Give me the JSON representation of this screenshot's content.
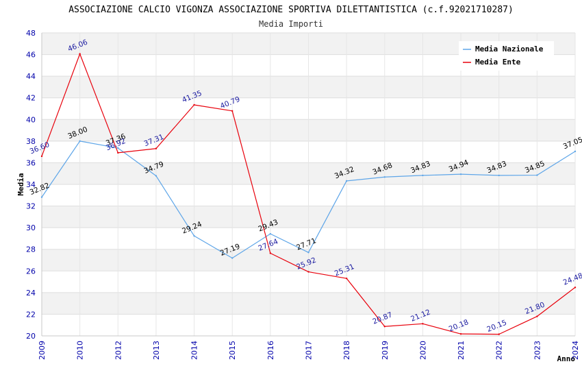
{
  "chart_data": {
    "type": "line",
    "title": "ASSOCIAZIONE CALCIO VIGONZA ASSOCIAZIONE SPORTIVA DILETTANTISTICA (c.f.92021710287)",
    "subtitle": "Media Importi",
    "xlabel": "Anno",
    "ylabel": "Media",
    "ylim": [
      20,
      48
    ],
    "ytick_step": 2,
    "grid": true,
    "legend_position": "top-right",
    "categories": [
      "2009",
      "2010",
      "2012",
      "2013",
      "2014",
      "2015",
      "2016",
      "2017",
      "2018",
      "2019",
      "2020",
      "2021",
      "2022",
      "2023",
      "2024"
    ],
    "series": [
      {
        "name": "Media Nazionale",
        "color": "#5da5e8",
        "label_color": "#000000",
        "values": [
          32.82,
          38.0,
          37.36,
          34.79,
          29.24,
          27.19,
          29.43,
          27.71,
          34.32,
          34.68,
          34.83,
          34.94,
          34.83,
          34.85,
          37.05
        ],
        "labels": [
          "32.82",
          "38.00",
          "37.36",
          "34.79",
          "29.24",
          "27.19",
          "29.43",
          "27.71",
          "34.32",
          "34.68",
          "34.83",
          "34.94",
          "34.83",
          "34.85",
          "37.05"
        ]
      },
      {
        "name": "Media Ente",
        "color": "#e8000b",
        "label_color": "#1a1aa0",
        "values": [
          36.6,
          46.06,
          36.92,
          37.31,
          41.35,
          40.79,
          27.64,
          25.92,
          25.31,
          20.87,
          21.12,
          20.18,
          20.15,
          21.8,
          24.48
        ],
        "labels": [
          "36.60",
          "46.06",
          "36.92",
          "37.31",
          "41.35",
          "40.79",
          "27.64",
          "25.92",
          "25.31",
          "20.87",
          "21.12",
          "20.18",
          "20.15",
          "21.80",
          "24.48"
        ]
      }
    ]
  }
}
